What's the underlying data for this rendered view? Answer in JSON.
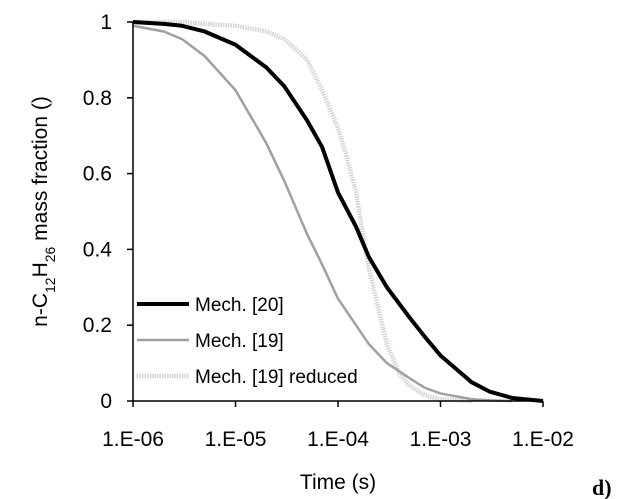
{
  "chart_data": {
    "type": "line",
    "x_scale": "log",
    "xlim": [
      1e-06,
      0.01
    ],
    "ylim": [
      0,
      1
    ],
    "xlabel": "Time (s)",
    "ylabel": {
      "prefix": "n-C",
      "sub1": "12",
      "mid": "H",
      "sub2": "26",
      "suffix": " mass fraction ()"
    },
    "x_ticks": [
      {
        "value": 1e-06,
        "label": "1.E-06"
      },
      {
        "value": 1e-05,
        "label": "1.E-05"
      },
      {
        "value": 0.0001,
        "label": "1.E-04"
      },
      {
        "value": 0.001,
        "label": "1.E-03"
      },
      {
        "value": 0.01,
        "label": "1.E-02"
      }
    ],
    "y_ticks": [
      {
        "value": 0,
        "label": "0"
      },
      {
        "value": 0.2,
        "label": "0.2"
      },
      {
        "value": 0.4,
        "label": "0.4"
      },
      {
        "value": 0.6,
        "label": "0.6"
      },
      {
        "value": 0.8,
        "label": "0.8"
      },
      {
        "value": 1,
        "label": "1"
      }
    ],
    "grid": false,
    "legend_position": "bottom-left",
    "panel_label": "d)",
    "series": [
      {
        "name": "Mech. [20]",
        "color": "#000000",
        "style": "solid-thick",
        "x": [
          1e-06,
          2e-06,
          3e-06,
          5e-06,
          1e-05,
          2e-05,
          3e-05,
          5e-05,
          7e-05,
          0.0001,
          0.00015,
          0.0002,
          0.0003,
          0.0005,
          0.0007,
          0.001,
          0.002,
          0.003,
          0.005,
          0.01
        ],
        "y": [
          1.0,
          0.995,
          0.99,
          0.975,
          0.94,
          0.88,
          0.83,
          0.74,
          0.67,
          0.55,
          0.46,
          0.38,
          0.3,
          0.22,
          0.17,
          0.12,
          0.05,
          0.025,
          0.008,
          0.0
        ]
      },
      {
        "name": "Mech. [19]",
        "color": "#a0a0a0",
        "style": "solid",
        "x": [
          1e-06,
          2e-06,
          3e-06,
          5e-06,
          1e-05,
          2e-05,
          3e-05,
          5e-05,
          7e-05,
          0.0001,
          0.00015,
          0.0002,
          0.0003,
          0.0005,
          0.0007,
          0.001,
          0.002,
          0.003,
          0.005
        ],
        "y": [
          0.99,
          0.975,
          0.955,
          0.91,
          0.82,
          0.68,
          0.58,
          0.44,
          0.36,
          0.27,
          0.2,
          0.15,
          0.1,
          0.06,
          0.035,
          0.02,
          0.005,
          0.002,
          0.0
        ]
      },
      {
        "name": "Mech. [19] reduced",
        "color": "#d4d4d4",
        "style": "dotted-thick",
        "x": [
          1e-06,
          3e-06,
          5e-06,
          1e-05,
          2e-05,
          3e-05,
          5e-05,
          7e-05,
          0.0001,
          0.00012,
          0.00015,
          0.00018,
          0.0002,
          0.00025,
          0.0003,
          0.0004,
          0.0005,
          0.0007,
          0.001,
          0.002
        ],
        "y": [
          1.0,
          1.0,
          0.995,
          0.99,
          0.975,
          0.955,
          0.9,
          0.82,
          0.72,
          0.65,
          0.55,
          0.42,
          0.35,
          0.24,
          0.15,
          0.07,
          0.04,
          0.015,
          0.005,
          0.0
        ]
      }
    ]
  }
}
